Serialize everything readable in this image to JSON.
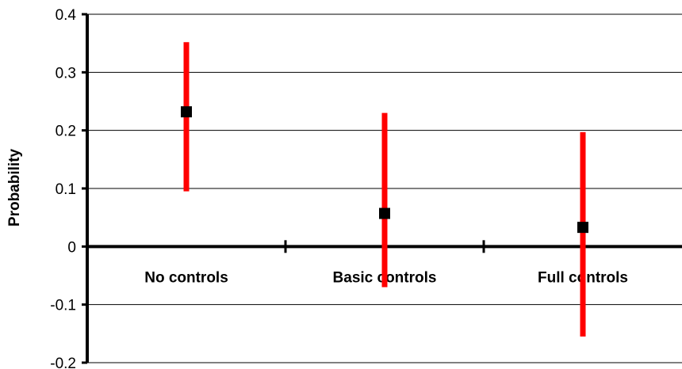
{
  "chart_data": {
    "type": "scatter",
    "title": "",
    "xlabel": "",
    "ylabel": "Probability",
    "ylim": [
      -0.2,
      0.4
    ],
    "yticks": [
      0.4,
      0.3,
      0.2,
      0.1,
      0,
      -0.1,
      -0.2
    ],
    "ytick_labels": [
      "0.4",
      "0.3",
      "0.2",
      "0.1",
      "0",
      "-0.1",
      "-0.2"
    ],
    "categories": [
      "No controls",
      "Basic controls",
      "Full controls"
    ],
    "series": [
      {
        "values": [
          0.232,
          0.057,
          0.033
        ],
        "lower": [
          0.095,
          -0.07,
          -0.155
        ],
        "upper": [
          0.352,
          0.23,
          0.197
        ]
      }
    ],
    "grid": true,
    "legend": "none",
    "colors": {
      "marker": "#000000",
      "error_bar": "#ff0000",
      "grid": "#000000"
    }
  }
}
